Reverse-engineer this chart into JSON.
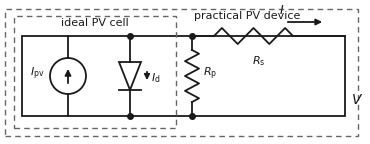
{
  "bg_color": "#ffffff",
  "line_color": "#1a1a1a",
  "dashed_color": "#666666",
  "label_practical": "practical PV device",
  "label_ideal": "ideal PV cell",
  "label_Ipv": "$I_{\\mathrm{pv}}$",
  "label_Id": "$I_{\\mathrm{d}}$",
  "label_Rp": "$R_{\\mathrm{p}}$",
  "label_Rs": "$R_{\\mathrm{s}}$",
  "label_I": "$I$",
  "label_V": "$V$"
}
